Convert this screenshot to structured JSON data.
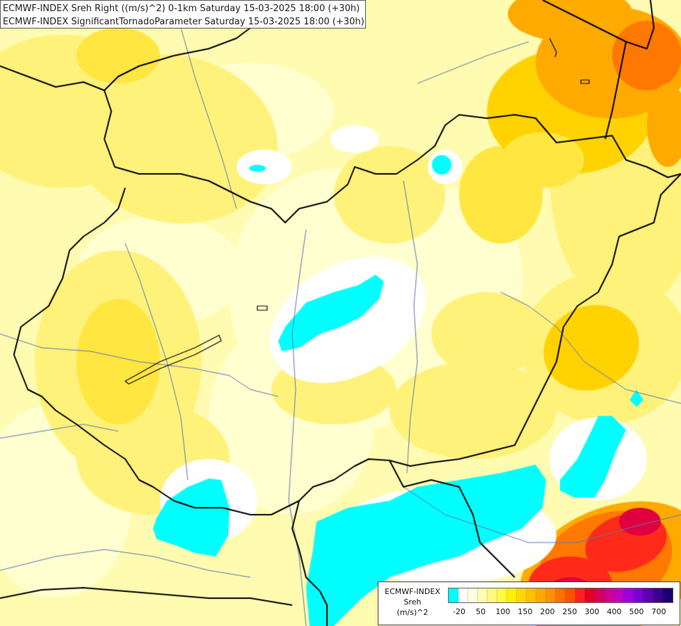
{
  "header": {
    "line1": "ECMWF-INDEX Sreh Right ((m/s)^2) 0-1km Saturday 15-03-2025 18:00 (+30h)",
    "line2": "ECMWF-INDEX SignificantTornadoParameter Saturday 15-03-2025 18:00 (+30h)"
  },
  "legend": {
    "model": "ECMWF-INDEX",
    "variable": "Sreh",
    "unit": "(m/s)^2",
    "swatches": [
      "#00ffff",
      "#ffffff",
      "#ffffe0",
      "#ffffb0",
      "#fff880",
      "#ffff40",
      "#fff000",
      "#ffd800",
      "#ffc000",
      "#ffa800",
      "#ff9000",
      "#ff7000",
      "#ff5000",
      "#ff2020",
      "#e80020",
      "#d8005a",
      "#d00090",
      "#c000c0",
      "#a000e0",
      "#7a00d8",
      "#5a00b0",
      "#3a0090",
      "#1a0070"
    ],
    "tick_labels": [
      "-20",
      "50",
      "100",
      "150",
      "200",
      "250",
      "300",
      "400",
      "500",
      "700"
    ]
  },
  "map_colors": {
    "background": "#fffbb0",
    "pale": "#ffffd0",
    "white": "#ffffff",
    "yellow": "#fff27a",
    "strong_yellow": "#ffe640",
    "gold": "#ffd200",
    "orange": "#ffaa00",
    "dark_orange": "#ff7800",
    "red": "#ff2a1a",
    "crimson": "#e00040",
    "cyan": "#00ffff",
    "border": "#000000",
    "river": "#5a78b4"
  }
}
